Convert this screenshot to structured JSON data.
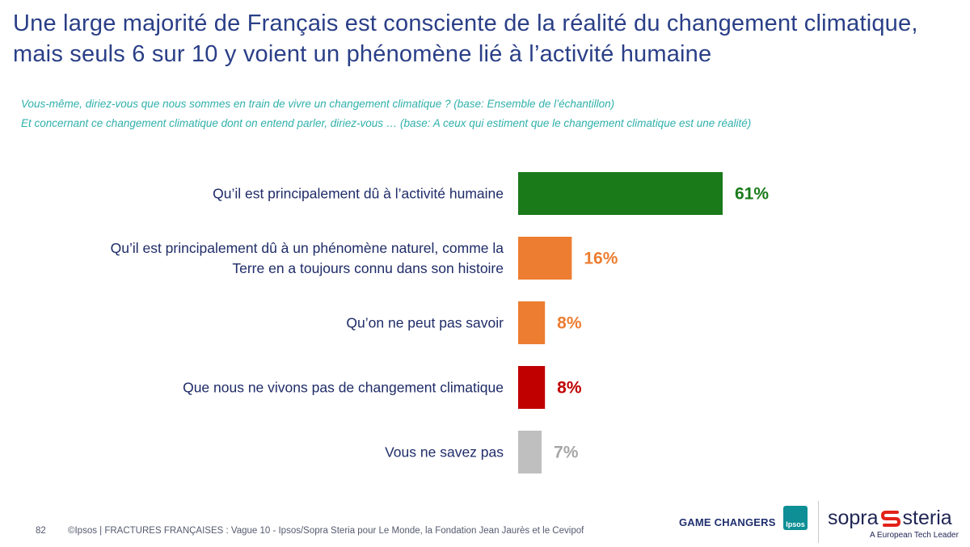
{
  "title": "Une large majorité de Français est consciente de la réalité du changement climatique, mais seuls 6 sur 10 y voient un phénomène lié à l’activité humaine",
  "questions": [
    "Vous-même, diriez-vous que nous sommes en train de vivre un changement climatique ? (base: Ensemble de l’échantillon)",
    "Et concernant ce changement climatique dont on entend parler, diriez-vous … (base: A ceux qui estiment que le changement climatique est une réalité)"
  ],
  "chart_data": {
    "type": "bar",
    "orientation": "horizontal",
    "title": "",
    "xlabel": "",
    "ylabel": "",
    "unit": "%",
    "grid": false,
    "legend": "none",
    "xlim": [
      0,
      100
    ],
    "categories": [
      [
        "Qu’il est principalement dû à l’activité humaine"
      ],
      [
        "Qu’il est principalement dû à un phénomène naturel, comme la",
        "Terre en a toujours connu dans son histoire"
      ],
      [
        "Qu’on ne peut pas savoir"
      ],
      [
        "Que nous ne vivons pas de changement climatique"
      ],
      [
        "Vous ne savez pas"
      ]
    ],
    "values": [
      61,
      16,
      8,
      8,
      7
    ],
    "value_labels": [
      "61%",
      "16%",
      "8%",
      "8%",
      "7%"
    ],
    "colors": [
      "#1a7a1a",
      "#ed7d31",
      "#ed7d31",
      "#c00000",
      "#bfbfbf"
    ]
  },
  "footer": {
    "page_number": "82",
    "source": "©Ipsos | FRACTURES FRANÇAISES : Vague 10 - Ipsos/Sopra Steria pour Le Monde, la Fondation Jean Jaurès et le Cevipof"
  },
  "logos": {
    "game_changers": "GAME CHANGERS",
    "ipsos": "Ipsos",
    "sopra_left": "sopra",
    "sopra_right": "steria",
    "sopra_tagline": "A European Tech Leader",
    "sopra_mark_icon": "sopra-steria-s-icon",
    "sopra_mark_color": "#e2231a"
  }
}
